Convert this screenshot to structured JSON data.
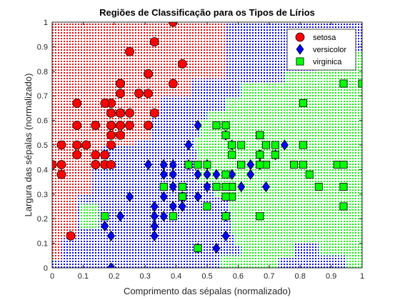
{
  "chart_data": {
    "type": "scatter",
    "title": "Regiões de Classificação para os Tipos de Lírios",
    "xlabel": "Comprimento das sépalas (normalizado)",
    "ylabel": "Largura das sépalas (normalizado)",
    "xlim": [
      0,
      1
    ],
    "ylim": [
      0,
      1
    ],
    "xticks": [
      "0",
      "0.1",
      "0.2",
      "0.3",
      "0.4",
      "0.5",
      "0.6",
      "0.7",
      "0.8",
      "0.9",
      "1"
    ],
    "yticks": [
      "0",
      "0.1",
      "0.2",
      "0.3",
      "0.4",
      "0.5",
      "0.6",
      "0.7",
      "0.8",
      "0.9",
      "1"
    ],
    "grid": false,
    "legend_position": "top-right",
    "background_regions": {
      "description_colors": {
        "setosa": "#ff0000",
        "versicolor": "#0000ff",
        "virginica": "#00ff00"
      },
      "setosa_boundary": [
        [
          0,
          0.03
        ],
        [
          0,
          1
        ],
        [
          0.56,
          1
        ],
        [
          0.56,
          0.77
        ],
        [
          0.45,
          0.77
        ],
        [
          0.45,
          0.7
        ],
        [
          0.35,
          0.7
        ],
        [
          0.35,
          0.62
        ],
        [
          0.32,
          0.62
        ],
        [
          0.32,
          0.52
        ],
        [
          0.27,
          0.52
        ],
        [
          0.27,
          0.5
        ],
        [
          0.16,
          0.5
        ],
        [
          0.16,
          0.4
        ],
        [
          0.13,
          0.4
        ],
        [
          0.13,
          0.3
        ],
        [
          0.08,
          0.3
        ],
        [
          0.08,
          0.12
        ],
        [
          0.03,
          0.12
        ],
        [
          0.03,
          0.03
        ]
      ],
      "virginica_boundary": [
        [
          1,
          0
        ],
        [
          1,
          0.88
        ],
        [
          0.85,
          0.88
        ],
        [
          0.85,
          0.8
        ],
        [
          0.75,
          0.8
        ],
        [
          0.75,
          0.75
        ],
        [
          0.61,
          0.75
        ],
        [
          0.61,
          0.69
        ],
        [
          0.56,
          0.69
        ],
        [
          0.56,
          0.64
        ],
        [
          0.5,
          0.64
        ],
        [
          0.5,
          0.6
        ],
        [
          0.48,
          0.6
        ],
        [
          0.48,
          0.53
        ],
        [
          0.46,
          0.53
        ],
        [
          0.46,
          0.48
        ],
        [
          0.47,
          0.48
        ],
        [
          0.47,
          0.35
        ],
        [
          0.52,
          0.35
        ],
        [
          0.52,
          0.29
        ],
        [
          0.57,
          0.29
        ],
        [
          0.57,
          0.23
        ],
        [
          0.58,
          0.23
        ],
        [
          0.58,
          0.14
        ],
        [
          0.59,
          0.14
        ],
        [
          0.59,
          0.09
        ],
        [
          0.61,
          0.09
        ],
        [
          0.61,
          0.05
        ],
        [
          0.54,
          0.05
        ],
        [
          0.54,
          0
        ],
        [
          0.73,
          0
        ],
        [
          0.73,
          0.04
        ],
        [
          0.78,
          0.04
        ],
        [
          0.78,
          0.1
        ],
        [
          0.86,
          0.1
        ],
        [
          0.86,
          0.05
        ],
        [
          0.95,
          0.05
        ],
        [
          0.95,
          0
        ]
      ],
      "virginica_island": [
        [
          0.09,
          0.16
        ],
        [
          0.09,
          0.26
        ],
        [
          0.15,
          0.26
        ],
        [
          0.15,
          0.16
        ]
      ]
    },
    "series": [
      {
        "name": "setosa",
        "color": "#ff0000",
        "marker": "circle",
        "points": [
          [
            0.22,
            0.63
          ],
          [
            0.17,
            0.42
          ],
          [
            0.11,
            0.5
          ],
          [
            0.08,
            0.46
          ],
          [
            0.19,
            0.67
          ],
          [
            0.31,
            0.79
          ],
          [
            0.08,
            0.58
          ],
          [
            0.19,
            0.58
          ],
          [
            0.03,
            0.38
          ],
          [
            0.17,
            0.46
          ],
          [
            0.31,
            0.71
          ],
          [
            0.14,
            0.58
          ],
          [
            0.14,
            0.42
          ],
          [
            0.0,
            0.42
          ],
          [
            0.42,
            0.83
          ],
          [
            0.39,
            1.0
          ],
          [
            0.31,
            0.79
          ],
          [
            0.22,
            0.63
          ],
          [
            0.39,
            0.75
          ],
          [
            0.22,
            0.75
          ],
          [
            0.31,
            0.58
          ],
          [
            0.22,
            0.71
          ],
          [
            0.08,
            0.67
          ],
          [
            0.22,
            0.54
          ],
          [
            0.14,
            0.58
          ],
          [
            0.19,
            0.42
          ],
          [
            0.19,
            0.58
          ],
          [
            0.25,
            0.63
          ],
          [
            0.25,
            0.58
          ],
          [
            0.11,
            0.5
          ],
          [
            0.14,
            0.46
          ],
          [
            0.31,
            0.58
          ],
          [
            0.25,
            0.88
          ],
          [
            0.33,
            0.92
          ],
          [
            0.17,
            0.46
          ],
          [
            0.19,
            0.5
          ],
          [
            0.33,
            0.63
          ],
          [
            0.17,
            0.67
          ],
          [
            0.03,
            0.42
          ],
          [
            0.22,
            0.58
          ],
          [
            0.19,
            0.63
          ],
          [
            0.06,
            0.13
          ],
          [
            0.03,
            0.5
          ],
          [
            0.19,
            0.63
          ],
          [
            0.22,
            0.75
          ],
          [
            0.14,
            0.42
          ],
          [
            0.22,
            0.75
          ],
          [
            0.08,
            0.5
          ],
          [
            0.28,
            0.71
          ],
          [
            0.19,
            0.54
          ]
        ]
      },
      {
        "name": "versicolor",
        "color": "#0000ff",
        "marker": "diamond",
        "points": [
          [
            0.75,
            0.5
          ],
          [
            0.58,
            0.5
          ],
          [
            0.72,
            0.46
          ],
          [
            0.33,
            0.13
          ],
          [
            0.61,
            0.33
          ],
          [
            0.39,
            0.33
          ],
          [
            0.56,
            0.54
          ],
          [
            0.17,
            0.17
          ],
          [
            0.64,
            0.38
          ],
          [
            0.25,
            0.29
          ],
          [
            0.19,
            0.0
          ],
          [
            0.44,
            0.42
          ],
          [
            0.47,
            0.08
          ],
          [
            0.5,
            0.38
          ],
          [
            0.36,
            0.38
          ],
          [
            0.67,
            0.46
          ],
          [
            0.36,
            0.42
          ],
          [
            0.42,
            0.29
          ],
          [
            0.53,
            0.08
          ],
          [
            0.36,
            0.21
          ],
          [
            0.44,
            0.5
          ],
          [
            0.5,
            0.33
          ],
          [
            0.56,
            0.21
          ],
          [
            0.5,
            0.33
          ],
          [
            0.58,
            0.38
          ],
          [
            0.64,
            0.42
          ],
          [
            0.69,
            0.33
          ],
          [
            0.67,
            0.42
          ],
          [
            0.47,
            0.38
          ],
          [
            0.39,
            0.25
          ],
          [
            0.33,
            0.17
          ],
          [
            0.33,
            0.17
          ],
          [
            0.42,
            0.29
          ],
          [
            0.47,
            0.29
          ],
          [
            0.31,
            0.42
          ],
          [
            0.47,
            0.58
          ],
          [
            0.67,
            0.46
          ],
          [
            0.56,
            0.13
          ],
          [
            0.36,
            0.42
          ],
          [
            0.33,
            0.21
          ],
          [
            0.33,
            0.25
          ],
          [
            0.5,
            0.42
          ],
          [
            0.42,
            0.25
          ],
          [
            0.19,
            0.13
          ],
          [
            0.36,
            0.29
          ],
          [
            0.39,
            0.42
          ],
          [
            0.39,
            0.38
          ],
          [
            0.53,
            0.38
          ],
          [
            0.22,
            0.21
          ],
          [
            0.39,
            0.33
          ]
        ]
      },
      {
        "name": "virginica",
        "color": "#00ff00",
        "marker": "square",
        "points": [
          [
            0.56,
            0.54
          ],
          [
            0.42,
            0.29
          ],
          [
            0.78,
            0.42
          ],
          [
            0.56,
            0.38
          ],
          [
            0.61,
            0.42
          ],
          [
            0.92,
            0.42
          ],
          [
            0.17,
            0.21
          ],
          [
            0.83,
            0.38
          ],
          [
            0.67,
            0.21
          ],
          [
            0.81,
            0.67
          ],
          [
            0.61,
            0.5
          ],
          [
            0.58,
            0.29
          ],
          [
            0.69,
            0.42
          ],
          [
            0.39,
            0.21
          ],
          [
            0.42,
            0.33
          ],
          [
            0.58,
            0.5
          ],
          [
            0.61,
            0.42
          ],
          [
            0.94,
            0.75
          ],
          [
            0.94,
            0.25
          ],
          [
            0.47,
            0.08
          ],
          [
            0.72,
            0.5
          ],
          [
            0.36,
            0.33
          ],
          [
            0.94,
            0.33
          ],
          [
            0.56,
            0.29
          ],
          [
            0.67,
            0.54
          ],
          [
            0.81,
            0.5
          ],
          [
            0.53,
            0.33
          ],
          [
            0.5,
            0.42
          ],
          [
            0.58,
            0.33
          ],
          [
            0.81,
            0.42
          ],
          [
            0.86,
            0.33
          ],
          [
            1.0,
            0.75
          ],
          [
            0.58,
            0.33
          ],
          [
            0.56,
            0.33
          ],
          [
            0.5,
            0.25
          ],
          [
            0.94,
            0.42
          ],
          [
            0.56,
            0.58
          ],
          [
            0.58,
            0.46
          ],
          [
            0.47,
            0.42
          ],
          [
            0.72,
            0.46
          ],
          [
            0.67,
            0.46
          ],
          [
            0.72,
            0.46
          ],
          [
            0.42,
            0.29
          ],
          [
            0.69,
            0.5
          ],
          [
            0.67,
            0.54
          ],
          [
            0.67,
            0.42
          ],
          [
            0.56,
            0.21
          ],
          [
            0.61,
            0.42
          ],
          [
            0.53,
            0.58
          ],
          [
            0.44,
            0.42
          ]
        ]
      }
    ]
  }
}
